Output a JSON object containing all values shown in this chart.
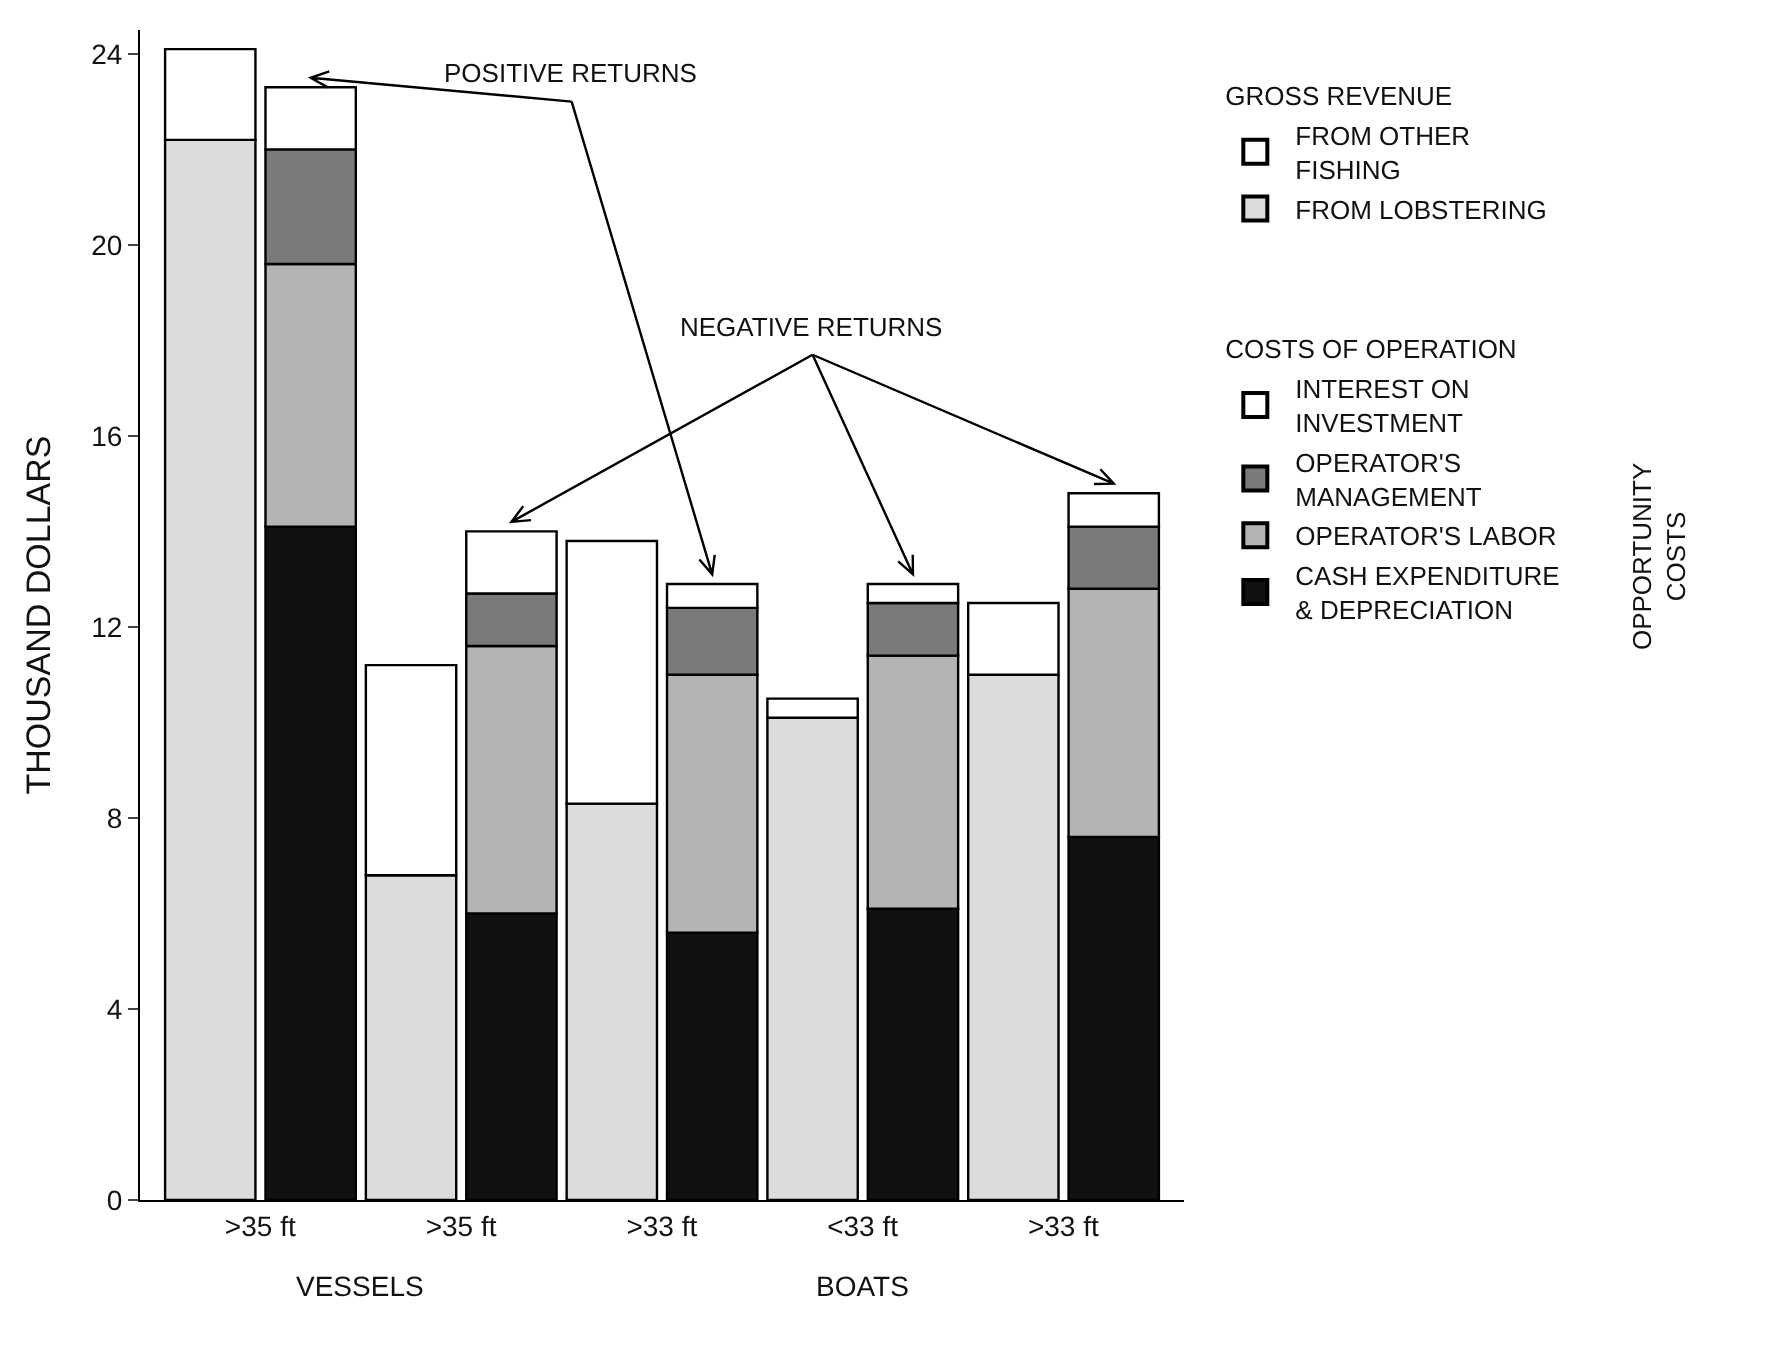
{
  "chart_data": {
    "type": "bar",
    "stacked": true,
    "categories": [
      ">35 ft",
      null,
      ">35 ft",
      null,
      ">33 ft",
      null,
      "<33 ft",
      null,
      ">33 ft",
      null
    ],
    "ylabel": "THOUSAND DOLLARS",
    "ylim": [
      0,
      24.5
    ],
    "yticks": [
      0,
      4,
      8,
      12,
      16,
      20,
      24
    ],
    "legend": "right",
    "series": [
      {
        "name": "FROM LOBSTERING",
        "color": "#dcdcdc",
        "values": [
          22.2,
          null,
          6.8,
          null,
          8.3,
          null,
          10.1,
          null,
          11.0,
          null
        ]
      },
      {
        "name": "FROM OTHER FISHING",
        "color": "#ffffff",
        "values": [
          1.9,
          null,
          4.4,
          null,
          5.5,
          null,
          0.4,
          null,
          1.5,
          null
        ]
      },
      {
        "name": "CASH EXPENDITURE & DEPRECIATION",
        "color": "#111111",
        "values": [
          null,
          14.1,
          null,
          6.0,
          null,
          5.6,
          null,
          6.1,
          null,
          7.6
        ]
      },
      {
        "name": "OPERATOR'S LABOR",
        "color": "#b4b4b4",
        "values": [
          null,
          5.5,
          null,
          5.6,
          null,
          5.4,
          null,
          5.3,
          null,
          5.2
        ]
      },
      {
        "name": "OPERATOR'S MANAGEMENT",
        "color": "#7a7a7a",
        "values": [
          null,
          2.4,
          null,
          1.1,
          null,
          1.4,
          null,
          1.1,
          null,
          1.3
        ]
      },
      {
        "name": "INTEREST ON INVESTMENT",
        "color": "#ffffff",
        "values": [
          null,
          1.3,
          null,
          1.3,
          null,
          0.5,
          null,
          0.4,
          null,
          0.7
        ]
      }
    ],
    "annotations": [
      "POSITIVE RETURNS",
      "NEGATIVE RETURNS",
      "VESSELS",
      "BOATS",
      "OPPORTUNITY COSTS",
      "GROSS REVENUE",
      "COSTS OF OPERATION"
    ]
  }
}
